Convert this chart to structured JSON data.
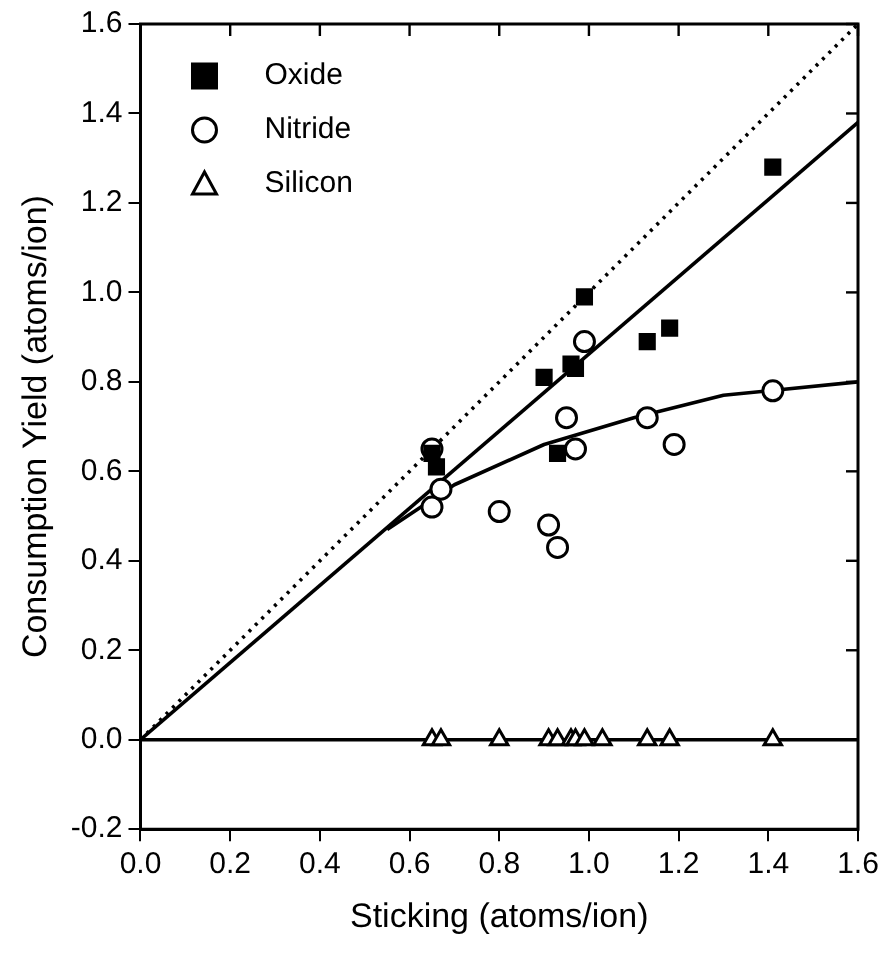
{
  "chart_data": {
    "type": "scatter",
    "xlabel": "Sticking (atoms/ion)",
    "ylabel": "Consumption Yield (atoms/ion)",
    "xlim": [
      0,
      1.6
    ],
    "ylim": [
      -0.2,
      1.6
    ],
    "xticks": [
      {
        "value": 0,
        "label": "0.0"
      },
      {
        "value": 0.2,
        "label": "0.2"
      },
      {
        "value": 0.4,
        "label": "0.4"
      },
      {
        "value": 0.6,
        "label": "0.6"
      },
      {
        "value": 0.8,
        "label": "0.8"
      },
      {
        "value": 1,
        "label": "1.0"
      },
      {
        "value": 1.2,
        "label": "1.2"
      },
      {
        "value": 1.4,
        "label": "1.4"
      },
      {
        "value": 1.6,
        "label": "1.6"
      }
    ],
    "yticks": [
      {
        "value": -0.2,
        "label": "-0.2"
      },
      {
        "value": 0,
        "label": "0.0"
      },
      {
        "value": 0.2,
        "label": "0.2"
      },
      {
        "value": 0.4,
        "label": "0.4"
      },
      {
        "value": 0.6,
        "label": "0.6"
      },
      {
        "value": 0.8,
        "label": "0.8"
      },
      {
        "value": 1,
        "label": "1.0"
      },
      {
        "value": 1.2,
        "label": "1.2"
      },
      {
        "value": 1.4,
        "label": "1.4"
      },
      {
        "value": 1.6,
        "label": "1.6"
      }
    ],
    "grid": false,
    "legend": "top left",
    "ref_lines": [
      {
        "axis": "y",
        "value": 0,
        "color": "#000000",
        "line_style": "solid"
      }
    ],
    "series": [
      {
        "type": "line",
        "color": "#000000",
        "line_style": "dotted",
        "marker": "none",
        "x": [
          0,
          1.6
        ],
        "values": [
          0,
          1.6
        ]
      },
      {
        "type": "line",
        "color": "#000000",
        "line_style": "solid",
        "marker": "none",
        "x": [
          0,
          1.6
        ],
        "values": [
          0,
          1.38
        ]
      },
      {
        "type": "line",
        "color": "#000000",
        "line_style": "solid",
        "marker": "none",
        "x": [
          0.55,
          0.7,
          0.9,
          1.1,
          1.3,
          1.6
        ],
        "values": [
          0.47,
          0.57,
          0.66,
          0.72,
          0.77,
          0.8
        ]
      },
      {
        "name": "Oxide",
        "color": "#000000",
        "marker": "square",
        "x": [
          0.65,
          0.66,
          0.9,
          0.93,
          0.96,
          0.97,
          0.99,
          1.13,
          1.18,
          1.41
        ],
        "values": [
          0.64,
          0.61,
          0.81,
          0.64,
          0.84,
          0.83,
          0.99,
          0.89,
          0.92,
          1.28
        ]
      },
      {
        "name": "Nitride",
        "color": "#000000",
        "marker": "circle",
        "x": [
          0.65,
          0.65,
          0.67,
          0.8,
          0.91,
          0.93,
          0.95,
          0.97,
          0.99,
          1.13,
          1.19,
          1.41
        ],
        "values": [
          0.65,
          0.52,
          0.56,
          0.51,
          0.48,
          0.43,
          0.72,
          0.65,
          0.89,
          0.72,
          0.66,
          0.78
        ]
      },
      {
        "name": "Silicon",
        "color": "#000000",
        "marker": "triangle",
        "x": [
          0.65,
          0.67,
          0.8,
          0.91,
          0.93,
          0.96,
          0.97,
          0.99,
          1.03,
          1.13,
          1.18,
          1.41
        ],
        "values": [
          0,
          0,
          0,
          0,
          0,
          0,
          0,
          0,
          0,
          0,
          0,
          0
        ]
      }
    ]
  }
}
